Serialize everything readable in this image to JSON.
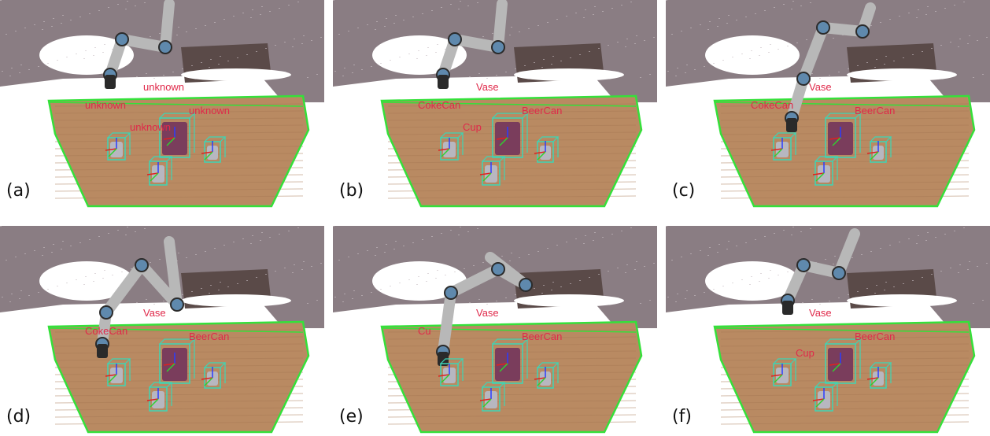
{
  "colors": {
    "table_outline": "#35e03a",
    "bbox": "#3cd6b6",
    "label": "#e0294a",
    "floor": "#b98a62",
    "wall": "#8a7d83",
    "robot_link": "#b8b8b8",
    "robot_joint": "#5f89ad",
    "gripper": "#2a2a2a"
  },
  "panels": [
    {
      "label": "(a)",
      "objects": [
        {
          "name": "unknown",
          "kind": "can"
        },
        {
          "name": "unknown",
          "kind": "vase"
        },
        {
          "name": "unknown",
          "kind": "cup"
        },
        {
          "name": "unknown",
          "kind": "can2"
        }
      ]
    },
    {
      "label": "(b)",
      "objects": [
        {
          "name": "CokeCan",
          "kind": "can"
        },
        {
          "name": "Vase",
          "kind": "vase"
        },
        {
          "name": "Cup",
          "kind": "cup"
        },
        {
          "name": "BeerCan",
          "kind": "can2"
        }
      ]
    },
    {
      "label": "(c)",
      "objects": [
        {
          "name": "CokeCan",
          "kind": "can"
        },
        {
          "name": "Vase",
          "kind": "vase"
        },
        {
          "name": "",
          "kind": "cup"
        },
        {
          "name": "BeerCan",
          "kind": "can2"
        }
      ]
    },
    {
      "label": "(d)",
      "objects": [
        {
          "name": "CokeCan",
          "kind": "can"
        },
        {
          "name": "Vase",
          "kind": "vase"
        },
        {
          "name": "",
          "kind": "cup"
        },
        {
          "name": "BeerCan",
          "kind": "can2"
        }
      ]
    },
    {
      "label": "(e)",
      "objects": [
        {
          "name": "Cu",
          "kind": "can"
        },
        {
          "name": "Vase",
          "kind": "vase"
        },
        {
          "name": "",
          "kind": "cup"
        },
        {
          "name": "BeerCan",
          "kind": "can2"
        }
      ]
    },
    {
      "label": "(f)",
      "objects": [
        {
          "name": "",
          "kind": "can"
        },
        {
          "name": "Vase",
          "kind": "vase"
        },
        {
          "name": "Cup",
          "kind": "cup"
        },
        {
          "name": "BeerCan",
          "kind": "can2"
        }
      ]
    }
  ]
}
